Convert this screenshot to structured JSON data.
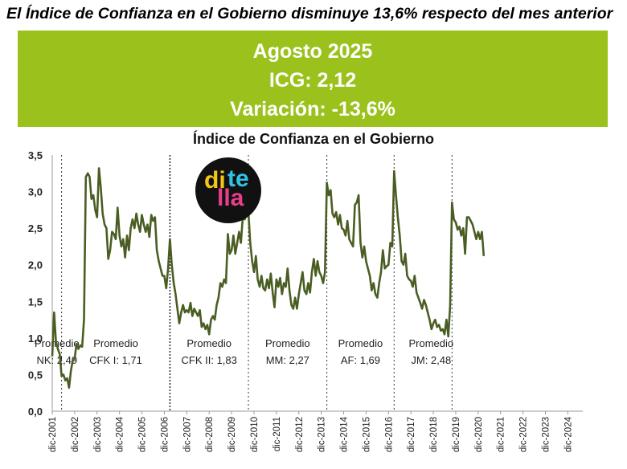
{
  "headline": "El Índice de Confianza en el Gobierno disminuye 13,6% respecto del mes anterior",
  "banner": {
    "period": "Agosto 2025",
    "icg": "ICG: 2,12",
    "variation": "Variación: -13,6%",
    "background_color": "#9bc21c"
  },
  "logo": {
    "parts": [
      "di",
      "te",
      "lla"
    ],
    "colors": [
      "#f5c518",
      "#2ec4e8",
      "#e83e8c"
    ]
  },
  "chart_data": {
    "type": "line",
    "title": "Índice de Confianza en el Gobierno",
    "xlabel": "",
    "ylabel": "",
    "ylim": [
      0,
      3.5
    ],
    "xlim": [
      "2001-12",
      "2025-08"
    ],
    "y_ticks": [
      "0,0",
      "0,5",
      "1,0",
      "1,5",
      "2,0",
      "2,5",
      "3,0",
      "3,5"
    ],
    "x_ticks": [
      "dic-2001",
      "dic-2002",
      "dic-2003",
      "dic-2004",
      "dic-2005",
      "dic-2006",
      "dic-2007",
      "dic-2008",
      "dic-2009",
      "dic-2010",
      "dic-2011",
      "dic-2012",
      "dic-2013",
      "dic-2014",
      "dic-2015",
      "dic-2016",
      "dic-2017",
      "dic-2018",
      "dic-2019",
      "dic-2020",
      "dic-2021",
      "dic-2022",
      "dic-2023",
      "dic-2024"
    ],
    "grid": false,
    "line_color": "#4a5e23",
    "series": [
      {
        "points": [
          [
            "2001-12",
            0.75
          ],
          [
            "2002-01",
            1.35
          ],
          [
            "2002-02",
            0.95
          ],
          [
            "2002-03",
            0.85
          ],
          [
            "2002-04",
            0.78
          ],
          [
            "2002-05",
            0.48
          ],
          [
            "2002-06",
            0.5
          ],
          [
            "2002-07",
            0.42
          ],
          [
            "2002-08",
            0.45
          ],
          [
            "2002-09",
            0.32
          ],
          [
            "2002-10",
            0.55
          ],
          [
            "2002-11",
            0.7
          ],
          [
            "2002-12",
            0.72
          ],
          [
            "2003-01",
            0.92
          ],
          [
            "2003-02",
            0.85
          ],
          [
            "2003-03",
            0.9
          ],
          [
            "2003-04",
            0.88
          ],
          [
            "2003-05",
            1.25
          ],
          [
            "2003-06",
            3.2
          ],
          [
            "2003-07",
            3.25
          ],
          [
            "2003-08",
            3.2
          ],
          [
            "2003-09",
            2.9
          ],
          [
            "2003-10",
            2.95
          ],
          [
            "2003-11",
            2.75
          ],
          [
            "2003-12",
            2.65
          ],
          [
            "2004-01",
            3.32
          ],
          [
            "2004-02",
            3.05
          ],
          [
            "2004-03",
            2.7
          ],
          [
            "2004-04",
            2.55
          ],
          [
            "2004-05",
            2.5
          ],
          [
            "2004-06",
            2.08
          ],
          [
            "2004-07",
            2.2
          ],
          [
            "2004-08",
            2.45
          ],
          [
            "2004-09",
            2.42
          ],
          [
            "2004-10",
            2.35
          ],
          [
            "2004-11",
            2.78
          ],
          [
            "2004-12",
            2.4
          ],
          [
            "2005-01",
            2.25
          ],
          [
            "2005-02",
            2.35
          ],
          [
            "2005-03",
            2.1
          ],
          [
            "2005-04",
            2.4
          ],
          [
            "2005-05",
            2.2
          ],
          [
            "2005-06",
            2.5
          ],
          [
            "2005-07",
            2.62
          ],
          [
            "2005-08",
            2.5
          ],
          [
            "2005-09",
            2.7
          ],
          [
            "2005-10",
            2.55
          ],
          [
            "2005-11",
            2.45
          ],
          [
            "2005-12",
            2.68
          ],
          [
            "2006-01",
            2.55
          ],
          [
            "2006-02",
            2.45
          ],
          [
            "2006-03",
            2.55
          ],
          [
            "2006-04",
            2.38
          ],
          [
            "2006-05",
            2.68
          ],
          [
            "2006-06",
            2.6
          ],
          [
            "2006-07",
            2.65
          ],
          [
            "2006-08",
            2.2
          ],
          [
            "2006-09",
            2.05
          ],
          [
            "2006-10",
            1.95
          ],
          [
            "2006-11",
            1.85
          ],
          [
            "2006-12",
            1.85
          ],
          [
            "2007-01",
            1.68
          ],
          [
            "2007-02",
            1.95
          ],
          [
            "2007-03",
            2.35
          ],
          [
            "2007-04",
            2.0
          ],
          [
            "2007-05",
            1.75
          ],
          [
            "2007-06",
            1.6
          ],
          [
            "2007-07",
            1.4
          ],
          [
            "2007-08",
            1.2
          ],
          [
            "2007-09",
            1.35
          ],
          [
            "2007-10",
            1.45
          ],
          [
            "2007-11",
            1.35
          ],
          [
            "2007-12",
            1.38
          ],
          [
            "2008-01",
            1.35
          ],
          [
            "2008-02",
            1.48
          ],
          [
            "2008-03",
            1.3
          ],
          [
            "2008-04",
            1.4
          ],
          [
            "2008-05",
            1.35
          ],
          [
            "2008-06",
            1.3
          ],
          [
            "2008-07",
            1.38
          ],
          [
            "2008-08",
            1.15
          ],
          [
            "2008-09",
            1.2
          ],
          [
            "2008-10",
            1.12
          ],
          [
            "2008-11",
            1.18
          ],
          [
            "2008-12",
            1.05
          ],
          [
            "2009-01",
            1.25
          ],
          [
            "2009-02",
            1.3
          ],
          [
            "2009-03",
            1.25
          ],
          [
            "2009-04",
            1.45
          ],
          [
            "2009-05",
            1.55
          ],
          [
            "2009-06",
            1.75
          ],
          [
            "2009-07",
            1.7
          ],
          [
            "2009-08",
            1.8
          ],
          [
            "2009-09",
            1.75
          ],
          [
            "2009-10",
            2.42
          ],
          [
            "2009-11",
            2.15
          ],
          [
            "2009-12",
            2.2
          ],
          [
            "2010-01",
            2.4
          ],
          [
            "2010-02",
            2.15
          ],
          [
            "2010-03",
            2.3
          ],
          [
            "2010-04",
            2.45
          ],
          [
            "2010-05",
            2.3
          ],
          [
            "2010-06",
            2.65
          ],
          [
            "2010-07",
            2.62
          ],
          [
            "2010-08",
            2.7
          ],
          [
            "2010-09",
            2.72
          ],
          [
            "2010-10",
            2.3
          ],
          [
            "2010-11",
            2.05
          ],
          [
            "2010-12",
            1.9
          ],
          [
            "2011-01",
            2.12
          ],
          [
            "2011-02",
            1.8
          ],
          [
            "2011-03",
            1.7
          ],
          [
            "2011-04",
            1.85
          ],
          [
            "2011-05",
            1.68
          ],
          [
            "2011-06",
            1.65
          ],
          [
            "2011-07",
            1.8
          ],
          [
            "2011-08",
            1.68
          ],
          [
            "2011-09",
            1.88
          ],
          [
            "2011-10",
            1.62
          ],
          [
            "2011-11",
            1.42
          ],
          [
            "2011-12",
            1.8
          ],
          [
            "2012-01",
            1.7
          ],
          [
            "2012-02",
            1.82
          ],
          [
            "2012-03",
            1.6
          ],
          [
            "2012-04",
            1.75
          ],
          [
            "2012-05",
            1.7
          ],
          [
            "2012-06",
            1.95
          ],
          [
            "2012-07",
            1.65
          ],
          [
            "2012-08",
            1.45
          ],
          [
            "2012-09",
            1.4
          ],
          [
            "2012-10",
            1.55
          ],
          [
            "2012-11",
            1.4
          ],
          [
            "2012-12",
            1.6
          ],
          [
            "2013-01",
            1.75
          ],
          [
            "2013-02",
            1.9
          ],
          [
            "2013-03",
            1.65
          ],
          [
            "2013-04",
            1.6
          ],
          [
            "2013-05",
            1.75
          ],
          [
            "2013-06",
            1.62
          ],
          [
            "2013-07",
            1.9
          ],
          [
            "2013-08",
            2.08
          ],
          [
            "2013-09",
            1.85
          ],
          [
            "2013-10",
            2.05
          ],
          [
            "2013-11",
            1.9
          ],
          [
            "2013-12",
            1.85
          ],
          [
            "2014-01",
            1.75
          ],
          [
            "2014-02",
            1.9
          ],
          [
            "2014-03",
            3.12
          ],
          [
            "2014-04",
            2.95
          ],
          [
            "2014-05",
            3.02
          ],
          [
            "2014-06",
            2.7
          ],
          [
            "2014-07",
            2.65
          ],
          [
            "2014-08",
            2.72
          ],
          [
            "2014-09",
            2.55
          ],
          [
            "2014-10",
            2.68
          ],
          [
            "2014-11",
            2.5
          ],
          [
            "2014-12",
            2.48
          ],
          [
            "2015-01",
            2.4
          ],
          [
            "2015-02",
            2.6
          ],
          [
            "2015-03",
            2.35
          ],
          [
            "2015-04",
            2.3
          ],
          [
            "2015-05",
            2.25
          ],
          [
            "2015-06",
            2.82
          ],
          [
            "2015-07",
            2.85
          ],
          [
            "2015-08",
            2.95
          ],
          [
            "2015-09",
            2.3
          ],
          [
            "2015-10",
            2.1
          ],
          [
            "2015-11",
            2.25
          ],
          [
            "2015-12",
            2.05
          ],
          [
            "2016-01",
            1.95
          ],
          [
            "2016-02",
            1.85
          ],
          [
            "2016-03",
            1.65
          ],
          [
            "2016-04",
            1.75
          ],
          [
            "2016-05",
            1.6
          ],
          [
            "2016-06",
            1.55
          ],
          [
            "2016-07",
            1.75
          ],
          [
            "2016-08",
            1.9
          ],
          [
            "2016-09",
            2.2
          ],
          [
            "2016-10",
            1.95
          ],
          [
            "2016-11",
            1.98
          ],
          [
            "2016-12",
            2.0
          ],
          [
            "2017-01",
            2.3
          ],
          [
            "2017-02",
            2.25
          ],
          [
            "2017-03",
            3.28
          ],
          [
            "2017-04",
            2.95
          ],
          [
            "2017-05",
            2.65
          ],
          [
            "2017-06",
            2.4
          ],
          [
            "2017-07",
            2.05
          ],
          [
            "2017-08",
            2.0
          ],
          [
            "2017-09",
            2.15
          ],
          [
            "2017-10",
            1.85
          ],
          [
            "2017-11",
            1.8
          ],
          [
            "2017-12",
            1.78
          ],
          [
            "2018-01",
            1.7
          ],
          [
            "2018-02",
            1.85
          ],
          [
            "2018-03",
            1.62
          ],
          [
            "2018-04",
            1.55
          ],
          [
            "2018-05",
            1.48
          ],
          [
            "2018-06",
            1.4
          ],
          [
            "2018-07",
            1.52
          ],
          [
            "2018-08",
            1.45
          ],
          [
            "2018-09",
            1.35
          ],
          [
            "2018-10",
            1.25
          ],
          [
            "2018-11",
            1.12
          ],
          [
            "2018-12",
            1.2
          ],
          [
            "2019-01",
            1.25
          ],
          [
            "2019-02",
            1.15
          ],
          [
            "2019-03",
            1.18
          ],
          [
            "2019-04",
            1.1
          ],
          [
            "2019-05",
            1.12
          ],
          [
            "2019-06",
            1.05
          ],
          [
            "2019-07",
            1.25
          ],
          [
            "2019-08",
            1.02
          ],
          [
            "2019-09",
            1.45
          ],
          [
            "2019-10",
            2.85
          ],
          [
            "2019-11",
            2.62
          ],
          [
            "2019-12",
            2.58
          ],
          [
            "2020-01",
            2.48
          ],
          [
            "2020-02",
            2.52
          ],
          [
            "2020-03",
            2.4
          ],
          [
            "2020-04",
            2.5
          ],
          [
            "2020-05",
            2.15
          ],
          [
            "2020-06",
            2.65
          ],
          [
            "2020-07",
            2.65
          ],
          [
            "2020-08",
            2.6
          ],
          [
            "2020-09",
            2.55
          ],
          [
            "2020-10",
            2.45
          ],
          [
            "2020-11",
            2.35
          ],
          [
            "2020-12",
            2.45
          ],
          [
            "2021-01",
            2.35
          ],
          [
            "2021-02",
            2.45
          ],
          [
            "2021-03",
            2.12
          ]
        ]
      }
    ],
    "period_dividers": [
      "2002-05",
      "2007-03",
      "2010-09",
      "2014-03",
      "2017-03",
      "2019-10"
    ],
    "period_labels": [
      {
        "line1": "Promedio",
        "line2": "NK: 2,49"
      },
      {
        "line1": "Promedio",
        "line2": "CFK I: 1,71"
      },
      {
        "line1": "Promedio",
        "line2": "CFK II: 1,83"
      },
      {
        "line1": "Promedio",
        "line2": "MM: 2,27"
      },
      {
        "line1": "Promedio",
        "line2": "AF: 1,69"
      },
      {
        "line1": "Promedio",
        "line2": "JM: 2,48"
      }
    ]
  }
}
